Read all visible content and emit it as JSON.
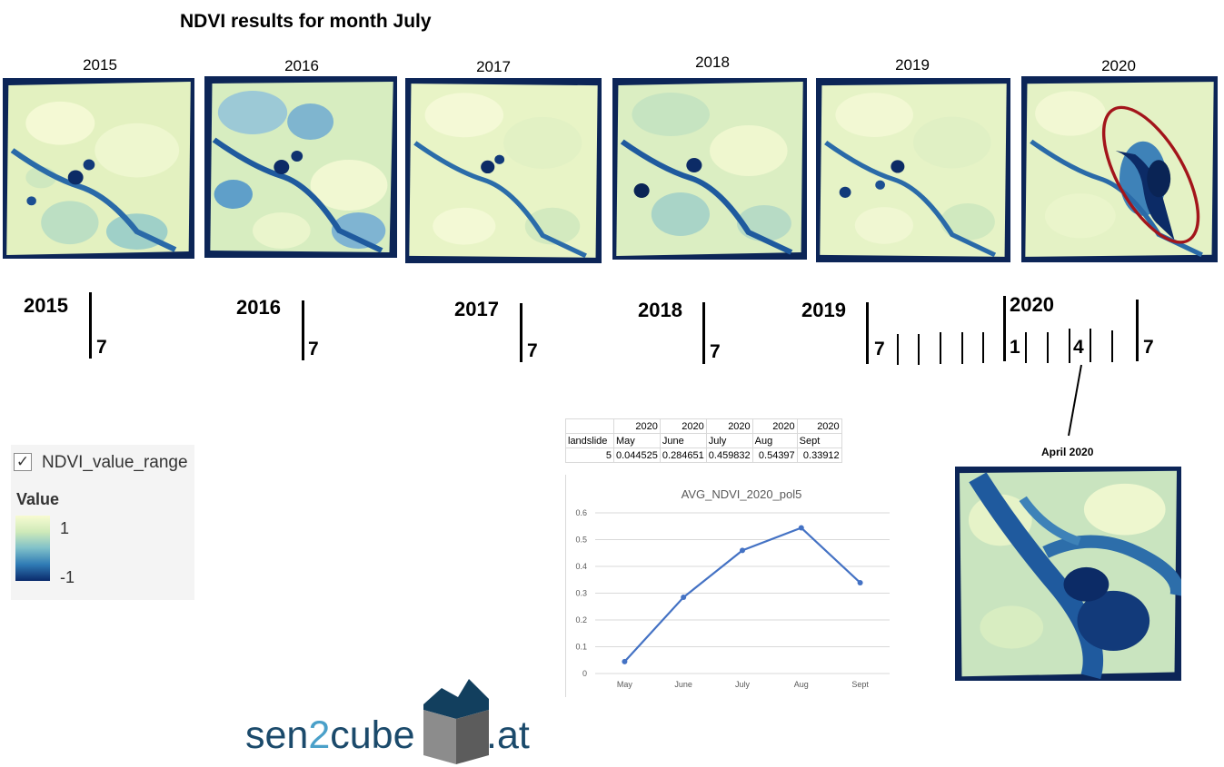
{
  "title": "NDVI results for month July",
  "map_panels": [
    {
      "year": "2015"
    },
    {
      "year": "2016"
    },
    {
      "year": "2017"
    },
    {
      "year": "2018"
    },
    {
      "year": "2019"
    },
    {
      "year": "2020"
    }
  ],
  "timeline": {
    "years": [
      "2015",
      "2016",
      "2017",
      "2018",
      "2019",
      "2020"
    ],
    "month_labels": [
      "7",
      "7",
      "7",
      "7",
      "7",
      "1",
      "4",
      "7"
    ]
  },
  "legend": {
    "layer_name": "NDVI_value_range",
    "header": "Value",
    "max_label": "1",
    "min_label": "-1",
    "checked": true,
    "colors": {
      "high": "#f7fbd2",
      "mid": "#7fc0c9",
      "low": "#0a2a6b"
    }
  },
  "sheet": {
    "row1": [
      "",
      "2020",
      "2020",
      "2020",
      "2020",
      "2020"
    ],
    "row2": [
      "landslide",
      "May",
      "June",
      "July",
      "Aug",
      "Sept"
    ],
    "row3": [
      "5",
      "0.044525",
      "0.284651",
      "0.459832",
      "0.54397",
      "0.33912"
    ]
  },
  "chart_data": {
    "type": "line",
    "title": "AVG_NDVI_2020_pol5",
    "categories": [
      "May",
      "June",
      "July",
      "Aug",
      "Sept"
    ],
    "series": [
      {
        "values": [
          0.044525,
          0.284651,
          0.459832,
          0.54397,
          0.33912
        ]
      }
    ],
    "ylim": [
      0,
      0.6
    ],
    "yticks": [
      "0",
      "0.1",
      "0.2",
      "0.3",
      "0.4",
      "0.5",
      "0.6"
    ],
    "grid": true,
    "line_color": "#4472c4"
  },
  "inset": {
    "label": "April 2020"
  },
  "highlight_color": "#a3151b",
  "logo": {
    "part1": "sen",
    "part2": "2",
    "part3": "cube",
    "part4": ".at",
    "icon": "cube-house-icon"
  }
}
